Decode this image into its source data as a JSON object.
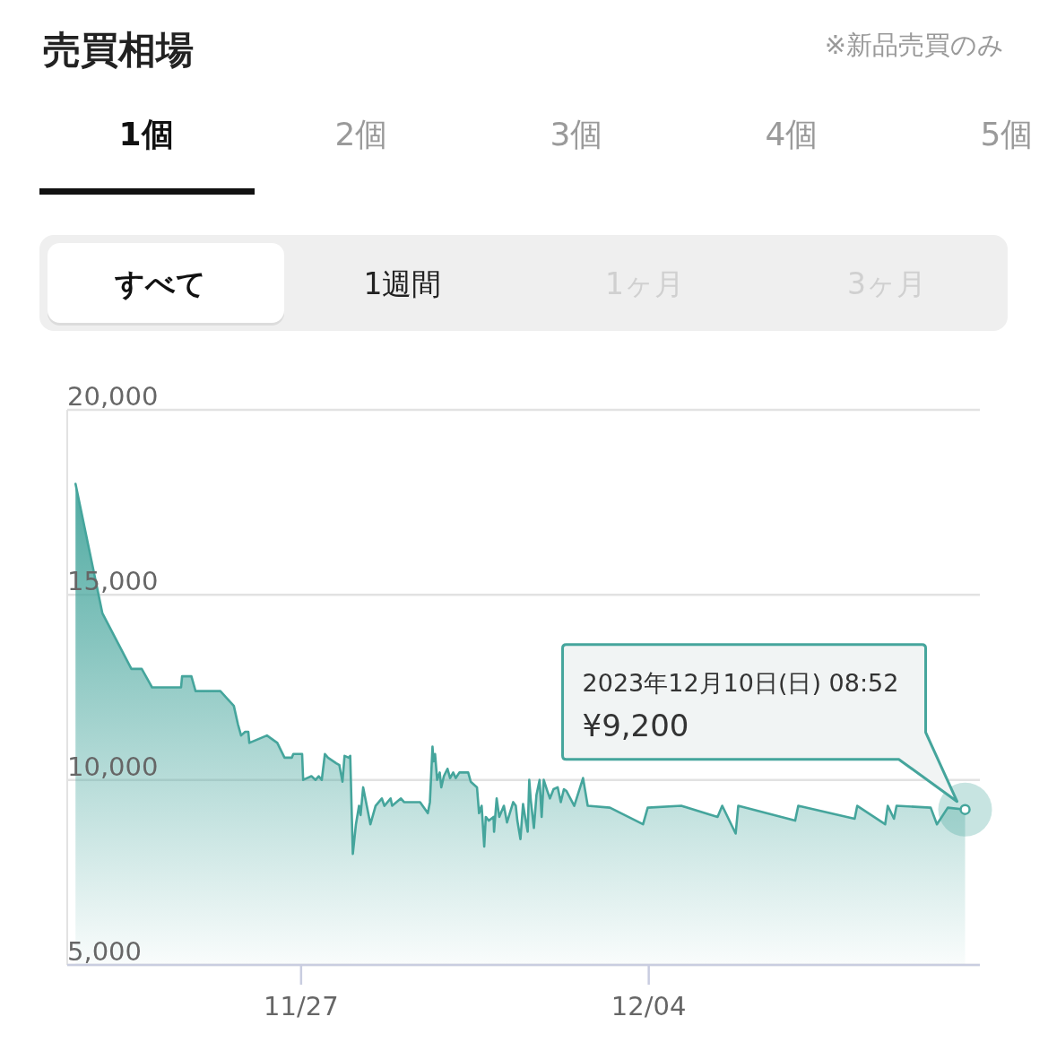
{
  "chart_data": {
    "type": "area",
    "title": "売買相場",
    "annotations": [
      "※新品売買のみ",
      "1個",
      "2個",
      "3個",
      "4個",
      "5個",
      "すべて",
      "1週間",
      "1ヶ月",
      "3ヶ月",
      "2023年12月10日(日) 08:52",
      "¥9,200"
    ],
    "x": [
      "2023-11-22T11:00",
      "2023-11-23T00:00",
      "2023-11-23T14:00",
      "2023-11-23T19:00",
      "2023-11-24T00:00",
      "2023-11-24T14:00",
      "2023-11-24T14:30",
      "2023-11-24T19:00",
      "2023-11-24T21:00",
      "2023-11-25T09:00",
      "2023-11-25T15:30",
      "2023-11-25T17:30",
      "2023-11-25T19:00",
      "2023-11-25T21:00",
      "2023-11-25T22:30",
      "2023-11-25T23:00",
      "2023-11-26T07:30",
      "2023-11-26T12:30",
      "2023-11-26T16:00",
      "2023-11-26T19:30",
      "2023-11-26T20:15",
      "2023-11-27T00:30",
      "2023-11-27T01:00",
      "2023-11-27T05:00",
      "2023-11-27T07:00",
      "2023-11-27T08:30",
      "2023-11-27T10:00",
      "2023-11-27T11:30",
      "2023-11-27T13:00",
      "2023-11-27T17:00",
      "2023-11-27T18:30",
      "2023-11-27T20:00",
      "2023-11-27T21:00",
      "2023-11-27T23:00",
      "2023-11-27T23:45",
      "2023-11-28T01:00",
      "2023-11-28T02:30",
      "2023-11-28T04:00",
      "2023-11-28T04:45",
      "2023-11-28T06:00",
      "2023-11-28T09:30",
      "2023-11-28T12:00",
      "2023-11-28T15:00",
      "2023-11-28T16:15",
      "2023-11-28T19:15",
      "2023-11-28T20:00",
      "2023-11-29T00:15",
      "2023-11-29T01:45",
      "2023-11-29T09:30",
      "2023-11-29T13:15",
      "2023-11-29T14:15",
      "2023-11-29T15:30",
      "2023-11-29T16:00",
      "2023-11-29T16:45",
      "2023-11-29T17:45",
      "2023-11-29T19:00",
      "2023-11-29T19:45",
      "2023-11-29T21:00",
      "2023-11-29T22:45",
      "2023-11-30T00:00",
      "2023-11-30T01:30",
      "2023-11-30T02:45",
      "2023-11-30T04:30",
      "2023-11-30T08:45",
      "2023-11-30T10:00",
      "2023-11-30T13:00",
      "2023-11-30T14:00",
      "2023-11-30T15:15",
      "2023-11-30T16:30",
      "2023-11-30T17:15",
      "2023-11-30T18:45",
      "2023-11-30T21:00",
      "2023-11-30T21:15",
      "2023-11-30T22:30",
      "2023-11-30T23:45",
      "2023-12-01T02:00",
      "2023-12-01T03:30",
      "2023-12-01T06:30",
      "2023-12-01T07:45",
      "2023-12-01T08:30",
      "2023-12-01T10:00",
      "2023-12-01T11:15",
      "2023-12-01T12:15",
      "2023-12-01T13:30",
      "2023-12-01T14:15",
      "2023-12-01T15:00",
      "2023-12-01T16:30",
      "2023-12-01T17:45",
      "2023-12-01T19:15",
      "2023-12-01T20:15",
      "2023-12-01T21:15",
      "2023-12-01T23:00",
      "2023-12-02T00:15",
      "2023-12-02T02:00",
      "2023-12-02T04:00",
      "2023-12-02T05:30",
      "2023-12-02T07:00",
      "2023-12-02T08:15",
      "2023-12-02T12:00",
      "2023-12-02T16:15",
      "2023-12-02T18:30",
      "2023-12-03T05:15",
      "2023-12-03T21:15",
      "2023-12-03T23:30",
      "2023-12-04T15:45",
      "2023-12-05T09:15",
      "2023-12-05T11:30",
      "2023-12-05T18:00",
      "2023-12-05T19:15",
      "2023-12-06T22:45",
      "2023-12-07T00:15",
      "2023-12-08T03:30",
      "2023-12-08T04:45",
      "2023-12-08T18:15",
      "2023-12-08T19:30",
      "2023-12-08T22:30",
      "2023-12-08T23:45",
      "2023-12-09T16:15",
      "2023-12-09T19:15",
      "2023-12-10T00:30",
      "2023-12-10T08:52"
    ],
    "series": [
      {
        "color": "#45a59c",
        "values": [
          18000,
          14500,
          13000,
          13000,
          12500,
          12500,
          12800,
          12800,
          12400,
          12400,
          12000,
          11500,
          11200,
          11300,
          11300,
          11000,
          11200,
          11000,
          10600,
          10600,
          10700,
          10700,
          10000,
          10100,
          10000,
          10100,
          10000,
          10700,
          10600,
          10450,
          10400,
          9950,
          10650,
          10600,
          10650,
          8000,
          8800,
          9300,
          9050,
          9800,
          8800,
          9300,
          9500,
          9300,
          9500,
          9300,
          9500,
          9400,
          9400,
          9100,
          9400,
          10900,
          10500,
          10700,
          10000,
          10200,
          9800,
          10100,
          10300,
          10050,
          10200,
          10050,
          10200,
          10200,
          9950,
          9800,
          9100,
          9300,
          8200,
          9000,
          8900,
          9000,
          8600,
          9500,
          9000,
          9300,
          8850,
          9400,
          9300,
          8900,
          8400,
          9350,
          9000,
          8600,
          10000,
          9450,
          8700,
          9600,
          10000,
          9000,
          10000,
          9700,
          9500,
          9750,
          9800,
          9400,
          9750,
          9700,
          9300,
          10050,
          9300,
          9250,
          8800,
          9250,
          9300,
          9000,
          9300,
          8550,
          9300,
          8900,
          9300,
          8950,
          9300,
          8800,
          9300,
          8950,
          9300,
          9250,
          8800,
          9250,
          9200
        ]
      }
    ],
    "xlim": [
      "2023-11-22T07:00",
      "2023-12-10T16:00"
    ],
    "xticks": [
      {
        "value": "2023-11-27",
        "label": "11/27"
      },
      {
        "value": "2023-12-04",
        "label": "12/04"
      }
    ],
    "ylim": [
      5000,
      20000
    ],
    "yticks": [
      {
        "value": 5000,
        "label": "5,000"
      },
      {
        "value": 10000,
        "label": "10,000"
      },
      {
        "value": 15000,
        "label": "15,000"
      },
      {
        "value": 20000,
        "label": "20,000"
      }
    ],
    "grid": "y"
  }
}
